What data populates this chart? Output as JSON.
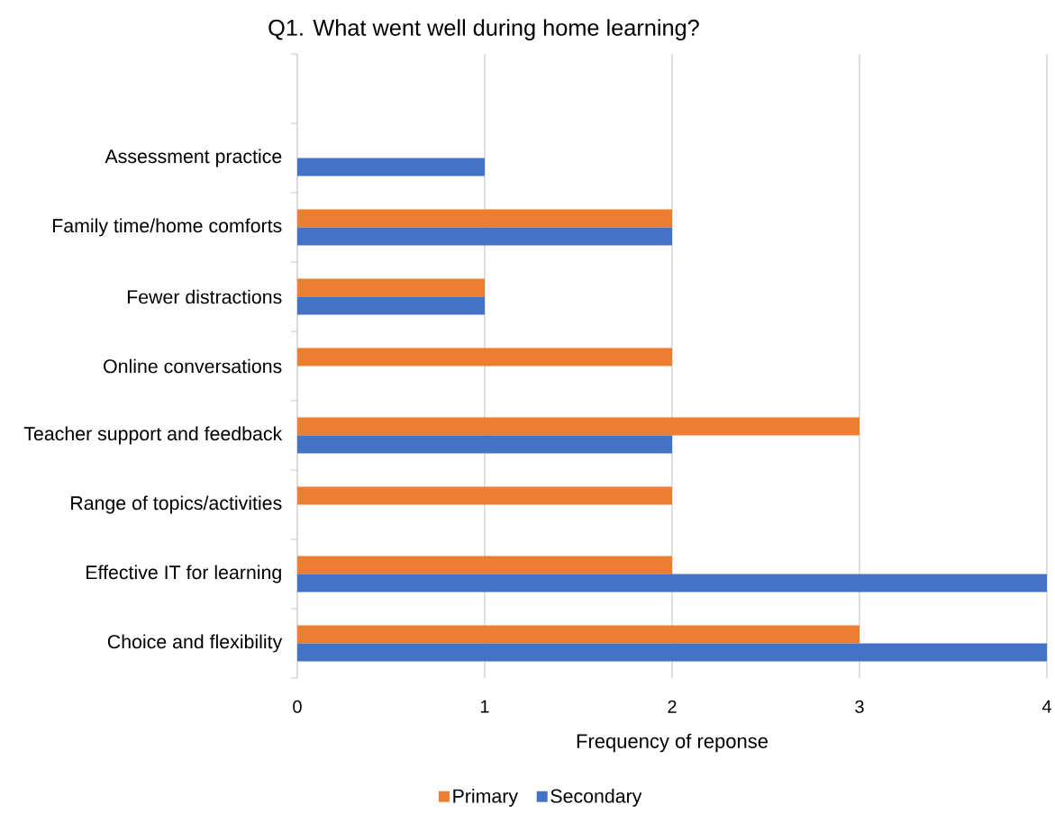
{
  "chart_data": {
    "type": "bar",
    "orientation": "horizontal",
    "title": "Q1. What went well during home learning?",
    "xlabel": "Frequency of reponse",
    "categories": [
      null,
      "Assessment practice",
      "Family time/home comforts",
      "Fewer distractions",
      "Online conversations",
      "Teacher support and feedback",
      "Range of topics/activities",
      "Effective IT for learning",
      "Choice and flexibility"
    ],
    "series": [
      {
        "name": "Primary",
        "color": "#ed7d31",
        "values": [
          null,
          null,
          2,
          1,
          2,
          3,
          2,
          2,
          3
        ]
      },
      {
        "name": "Secondary",
        "color": "#4472c4",
        "values": [
          null,
          1,
          2,
          1,
          null,
          2,
          null,
          4,
          4
        ]
      }
    ],
    "xlim": [
      0,
      4
    ],
    "xticks": [
      0,
      1,
      2,
      3,
      4
    ],
    "grid": "x",
    "legend": "bottom"
  }
}
